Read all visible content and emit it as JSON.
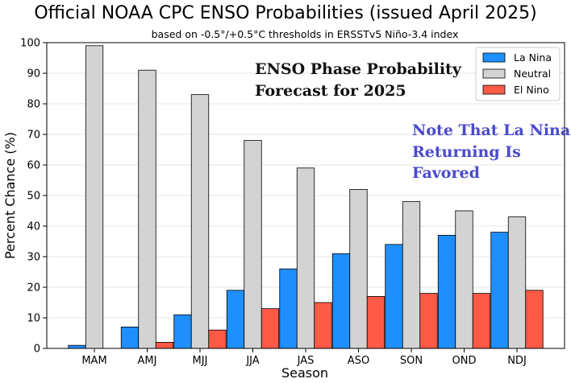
{
  "chart_data": {
    "type": "bar",
    "title": "Official NOAA CPC ENSO Probabilities (issued April 2025)",
    "subtitle": "based on -0.5°/+0.5°C thresholds in ERSSTv5 Niño-3.4 index",
    "xlabel": "Season",
    "ylabel": "Percent Chance (%)",
    "ylim": [
      0,
      100
    ],
    "yticks": [
      "0",
      "10",
      "20",
      "30",
      "40",
      "50",
      "60",
      "70",
      "80",
      "90",
      "100"
    ],
    "grid": true,
    "legend_position": "top-right",
    "categories": [
      "MAM",
      "AMJ",
      "MJJ",
      "JJA",
      "JAS",
      "ASO",
      "SON",
      "OND",
      "NDJ"
    ],
    "series": [
      {
        "name": "La Nina",
        "color": "#1f8fff",
        "values": [
          1,
          7,
          11,
          19,
          26,
          31,
          34,
          37,
          38
        ]
      },
      {
        "name": "Neutral",
        "color": "#d3d3d3",
        "values": [
          99,
          91,
          83,
          68,
          59,
          52,
          48,
          45,
          43
        ]
      },
      {
        "name": "El Nino",
        "color": "#ff5a46",
        "values": [
          0,
          2,
          6,
          13,
          15,
          17,
          18,
          18,
          19
        ]
      }
    ],
    "annotations": {
      "phase_line1": "ENSO Phase Probability",
      "phase_line2": "Forecast for 2025",
      "note_line1": "Note That La Nina",
      "note_line2": "Returning Is",
      "note_line3": "Favored"
    }
  }
}
